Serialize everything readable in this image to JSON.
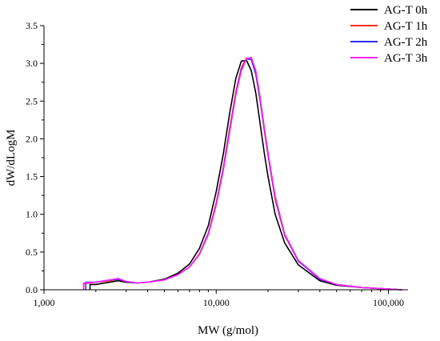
{
  "chart_data": {
    "type": "line",
    "xlabel": "MW (g/mol)",
    "ylabel": "dW/dLogM",
    "x_scale": "log",
    "xlim": [
      1000,
      130000
    ],
    "ylim": [
      0,
      3.5
    ],
    "x_ticks": [
      1000,
      10000,
      100000
    ],
    "x_tick_labels": [
      "1,000",
      "10,000",
      "100,000"
    ],
    "y_ticks": [
      0.0,
      0.5,
      1.0,
      1.5,
      2.0,
      2.5,
      3.0,
      3.5
    ],
    "y_tick_labels": [
      "0.0",
      "0.5",
      "1.0",
      "1.5",
      "2.0",
      "2.5",
      "3.0",
      "3.5"
    ],
    "grid": false,
    "legend_position": "top-right",
    "x": [
      1700,
      2000,
      2400,
      2700,
      3000,
      3500,
      4000,
      5000,
      6000,
      7000,
      8000,
      9000,
      10000,
      11000,
      12000,
      13000,
      14000,
      15000,
      16000,
      17000,
      18000,
      19000,
      20000,
      22000,
      25000,
      30000,
      40000,
      50000,
      70000,
      100000,
      120000
    ],
    "series": [
      {
        "name": "AG-T 0h",
        "color": "#000000",
        "start_x": 1850,
        "values": [
          0.06,
          0.07,
          0.1,
          0.12,
          0.1,
          0.09,
          0.1,
          0.14,
          0.22,
          0.34,
          0.55,
          0.85,
          1.3,
          1.8,
          2.35,
          2.8,
          3.03,
          3.04,
          2.9,
          2.6,
          2.2,
          1.82,
          1.5,
          1.0,
          0.62,
          0.33,
          0.12,
          0.06,
          0.03,
          0.01,
          0.0
        ]
      },
      {
        "name": "AG-T 1h",
        "color": "#ff2a1a",
        "start_x": 1700,
        "values": [
          0.08,
          0.1,
          0.12,
          0.14,
          0.11,
          0.09,
          0.1,
          0.13,
          0.2,
          0.3,
          0.48,
          0.75,
          1.15,
          1.62,
          2.15,
          2.62,
          2.94,
          3.07,
          3.05,
          2.85,
          2.5,
          2.12,
          1.78,
          1.2,
          0.72,
          0.38,
          0.14,
          0.07,
          0.03,
          0.01,
          0.0
        ]
      },
      {
        "name": "AG-T 2h",
        "color": "#2f2cff",
        "start_x": 1750,
        "values": [
          0.08,
          0.1,
          0.13,
          0.14,
          0.11,
          0.09,
          0.1,
          0.13,
          0.2,
          0.3,
          0.47,
          0.74,
          1.13,
          1.6,
          2.12,
          2.6,
          2.92,
          3.06,
          3.05,
          2.86,
          2.52,
          2.14,
          1.8,
          1.22,
          0.73,
          0.38,
          0.14,
          0.07,
          0.03,
          0.01,
          0.0
        ]
      },
      {
        "name": "AG-T 3h",
        "color": "#ff20ff",
        "start_x": 1700,
        "values": [
          0.09,
          0.1,
          0.13,
          0.15,
          0.11,
          0.09,
          0.1,
          0.13,
          0.2,
          0.3,
          0.47,
          0.73,
          1.12,
          1.58,
          2.1,
          2.58,
          2.9,
          3.06,
          3.08,
          2.9,
          2.55,
          2.16,
          1.82,
          1.24,
          0.74,
          0.39,
          0.15,
          0.07,
          0.03,
          0.01,
          0.0
        ]
      }
    ]
  }
}
